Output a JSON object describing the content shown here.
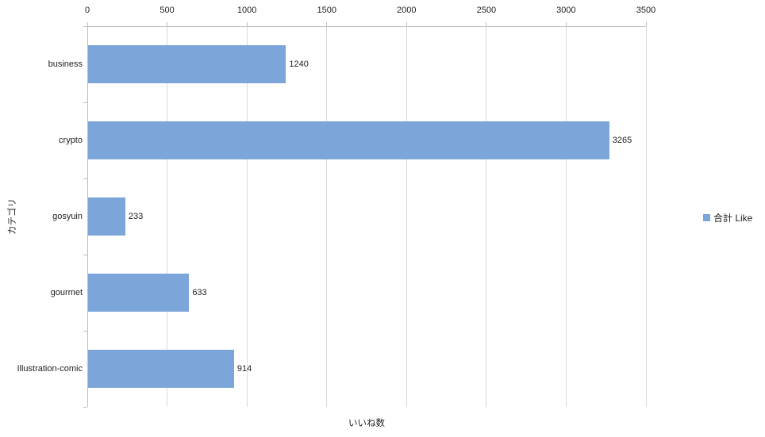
{
  "chart_data": {
    "type": "bar",
    "orientation": "horizontal",
    "title": "",
    "categories": [
      "business",
      "crypto",
      "gosyuin",
      "gourmet",
      "Illustration-comic"
    ],
    "series": [
      {
        "name": "合計 Like",
        "values": [
          1240,
          3265,
          233,
          633,
          914
        ]
      }
    ],
    "data_labels": [
      "1240",
      "3265",
      "233",
      "633",
      "914"
    ],
    "xlabel": "いいね数",
    "ylabel": "カテゴリ",
    "xlim": [
      0,
      3500
    ],
    "x_ticks": [
      0,
      500,
      1000,
      1500,
      2000,
      2500,
      3000,
      3500
    ],
    "value_axis_position": "top",
    "grid": true,
    "legend_position": "right",
    "colors": {
      "bar_fill": "#7CA5DA",
      "gridline": "#D9D9D9",
      "axis_line": "#BFBFBF",
      "text": "#1F1F1F",
      "background": "#FFFFFF"
    }
  }
}
